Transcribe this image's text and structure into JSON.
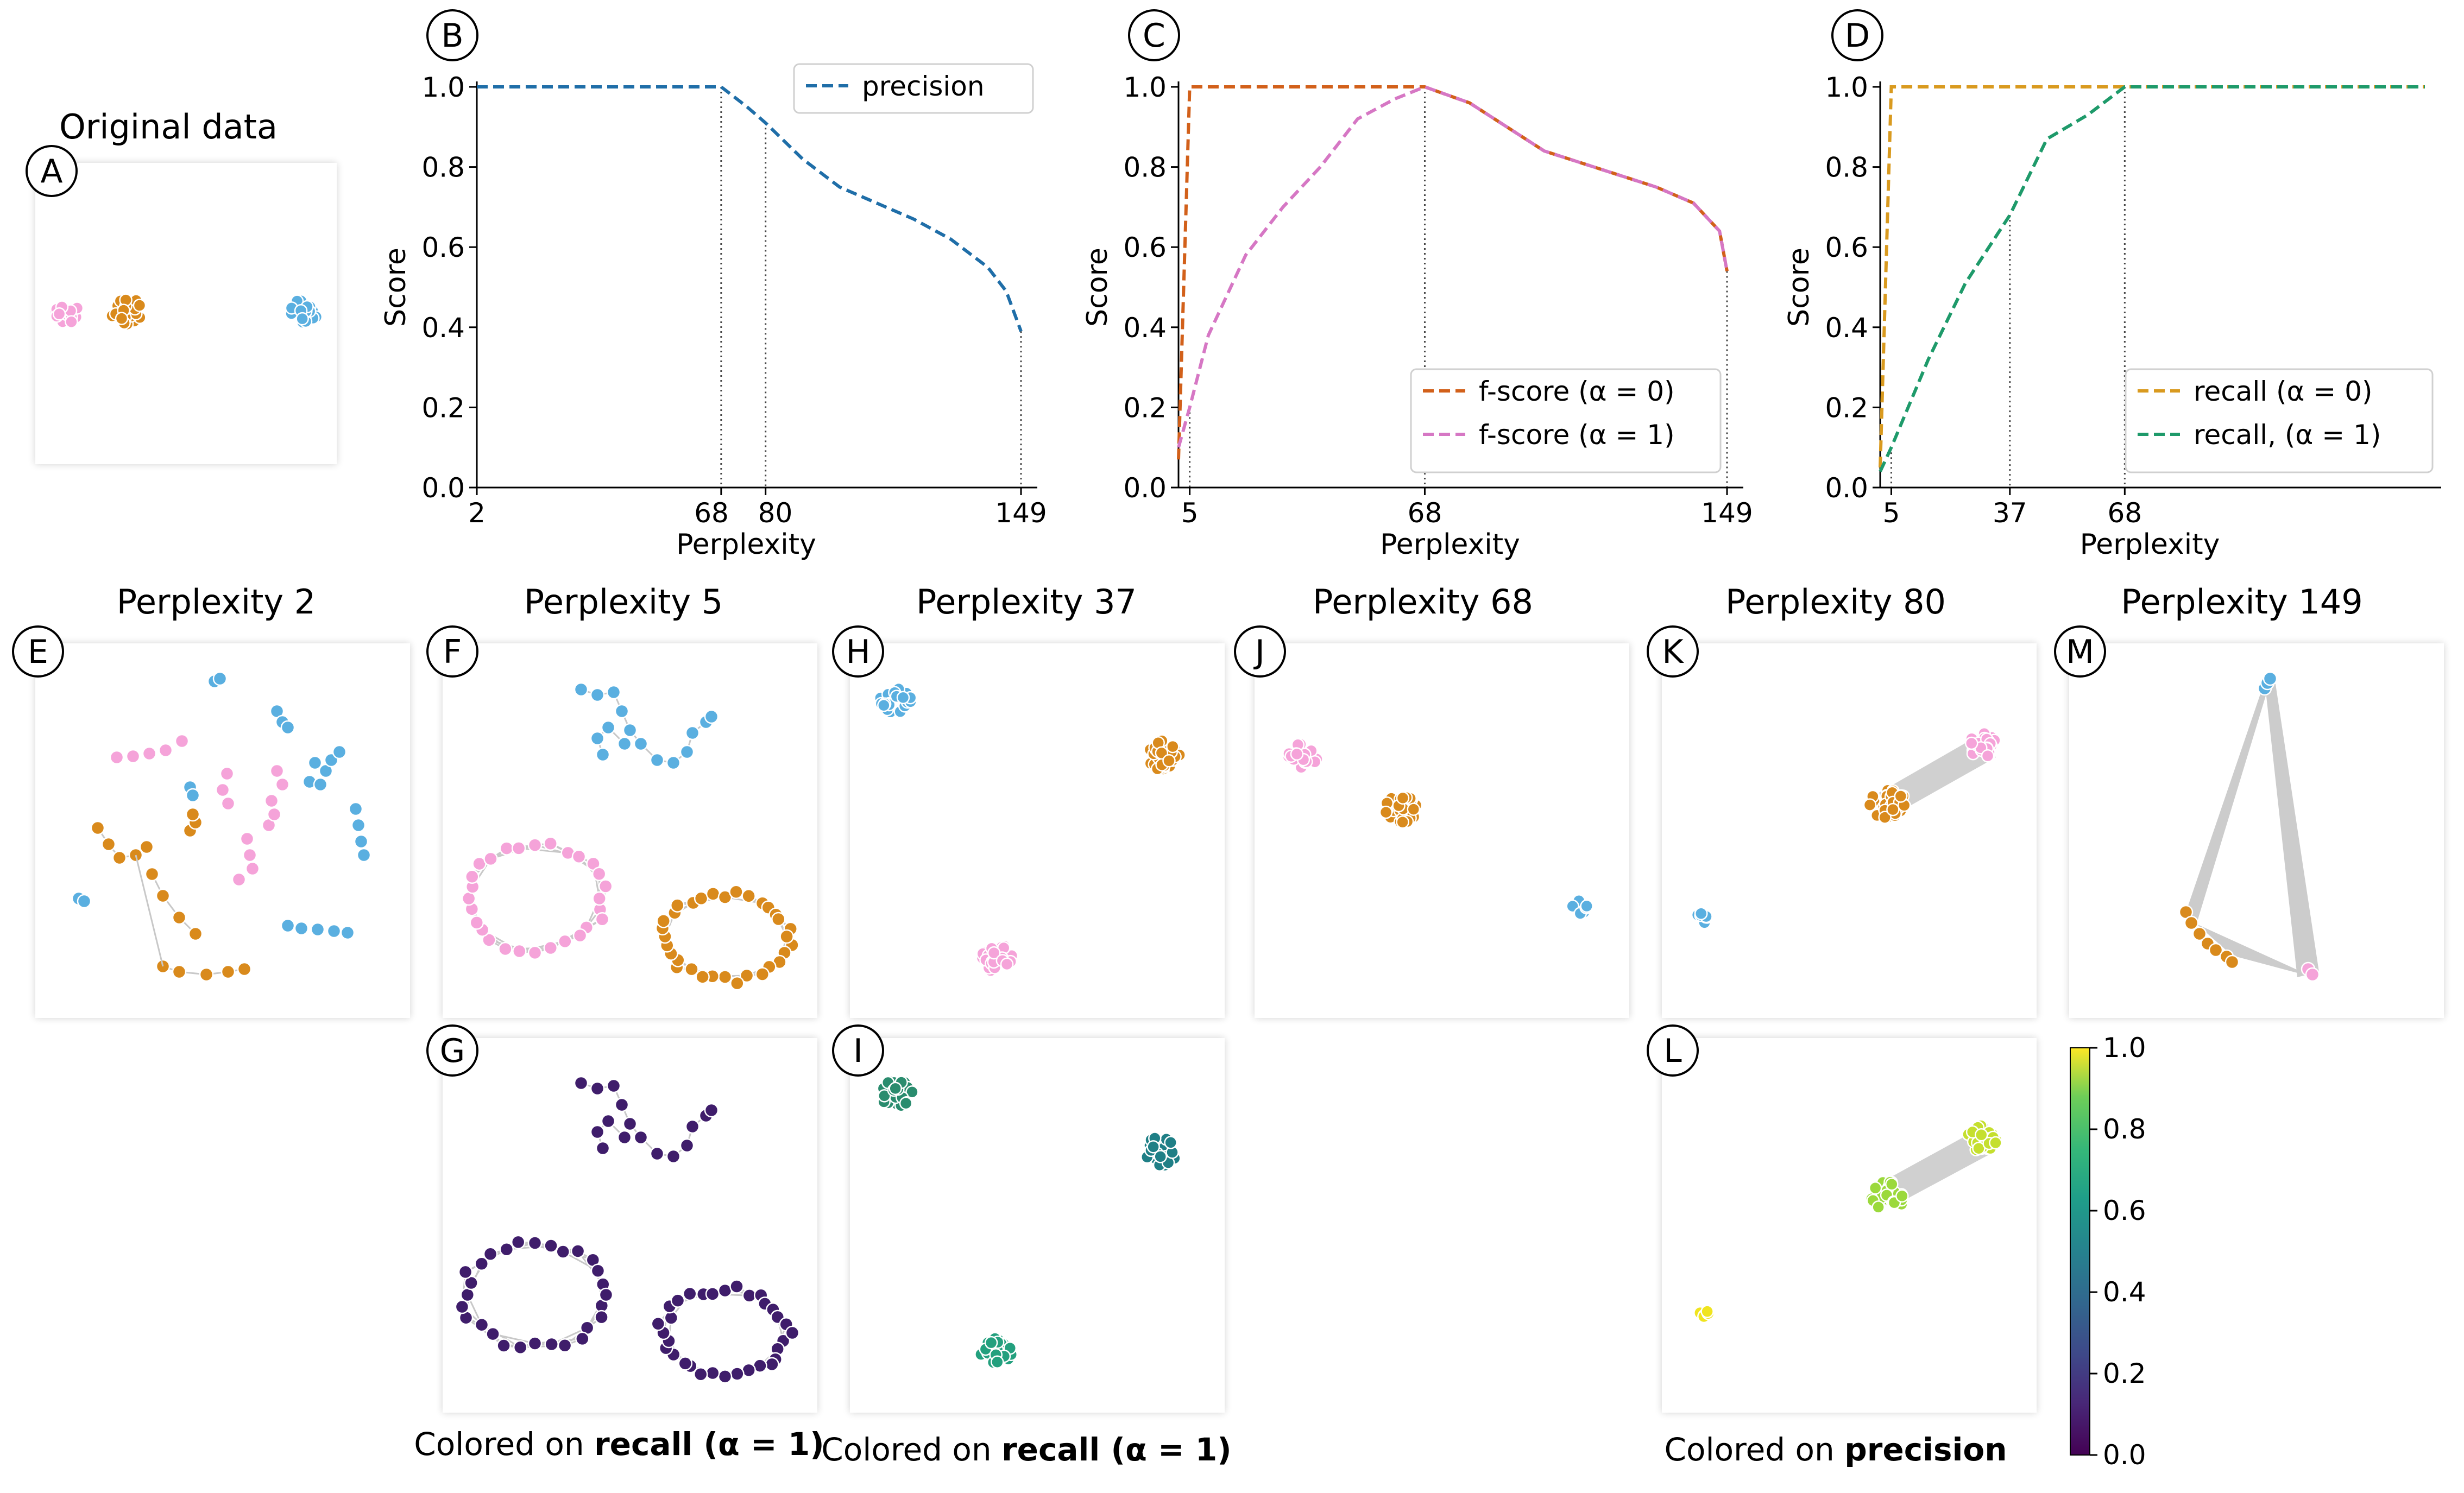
{
  "figure": {
    "panel_letters": [
      "A",
      "B",
      "C",
      "D",
      "E",
      "F",
      "G",
      "H",
      "I",
      "J",
      "K",
      "L",
      "M"
    ],
    "original_title": "Original data",
    "embedding_titles": [
      "Perplexity 2",
      "Perplexity 5",
      "Perplexity 37",
      "Perplexity 68",
      "Perplexity 80",
      "Perplexity 149"
    ],
    "captions": [
      {
        "prefix": "Colored on ",
        "bold": "recall (α = 1)"
      },
      {
        "prefix": "Colored on ",
        "bold": "recall (α = 1)"
      },
      {
        "prefix": "Colored on ",
        "bold": "precision"
      }
    ],
    "cluster_colors": {
      "pink": "#f5a3d9",
      "orange": "#d98a1c",
      "blue": "#5aafe0"
    },
    "edge_color": "#c8c8c8"
  },
  "chart_data": [
    {
      "id": "B",
      "type": "line",
      "xlabel": "Perplexity",
      "ylabel": "Score",
      "xlim": [
        2,
        149
      ],
      "ylim": [
        0,
        1.0
      ],
      "xticks": [
        2,
        68,
        80,
        149
      ],
      "yticks": [
        0.0,
        0.2,
        0.4,
        0.6,
        0.8,
        1.0
      ],
      "ytick_labels": [
        "0.0",
        "0.2",
        "0.4",
        "0.6",
        "0.8",
        "1.0"
      ],
      "vlines": [
        2,
        68,
        80,
        149
      ],
      "legend": "top-right",
      "series": [
        {
          "name": "precision",
          "color": "#1f6ea8",
          "x": [
            2,
            68,
            75,
            80,
            90,
            100,
            110,
            120,
            130,
            140,
            145,
            149
          ],
          "y": [
            1.0,
            1.0,
            0.95,
            0.91,
            0.82,
            0.75,
            0.71,
            0.67,
            0.62,
            0.55,
            0.49,
            0.39
          ]
        }
      ]
    },
    {
      "id": "C",
      "type": "line",
      "xlabel": "Perplexity",
      "ylabel": "Score",
      "xlim": [
        2,
        149
      ],
      "ylim": [
        0,
        1.0
      ],
      "xticks": [
        5,
        68,
        149
      ],
      "yticks": [
        0.0,
        0.2,
        0.4,
        0.6,
        0.8,
        1.0
      ],
      "ytick_labels": [
        "0.0",
        "0.2",
        "0.4",
        "0.6",
        "0.8",
        "1.0"
      ],
      "vlines": [
        5,
        68,
        149
      ],
      "legend": "bottom-right",
      "series": [
        {
          "name": "f-score (α = 0)",
          "color": "#d2601a",
          "x": [
            2,
            5,
            68,
            80,
            90,
            100,
            110,
            120,
            130,
            140,
            147,
            149
          ],
          "y": [
            0.07,
            1.0,
            1.0,
            0.96,
            0.9,
            0.84,
            0.81,
            0.78,
            0.75,
            0.71,
            0.64,
            0.54
          ]
        },
        {
          "name": "f-score (α = 1)",
          "color": "#d677c4",
          "x": [
            2,
            5,
            10,
            20,
            30,
            40,
            50,
            60,
            68,
            80,
            90,
            100,
            110,
            120,
            130,
            140,
            147,
            149
          ],
          "y": [
            0.1,
            0.2,
            0.38,
            0.58,
            0.7,
            0.8,
            0.92,
            0.97,
            1.0,
            0.96,
            0.9,
            0.84,
            0.81,
            0.78,
            0.75,
            0.71,
            0.64,
            0.54
          ]
        }
      ]
    },
    {
      "id": "D",
      "type": "line",
      "xlabel": "Perplexity",
      "ylabel": "Score",
      "xlim": [
        2,
        149
      ],
      "ylim": [
        0,
        1.0
      ],
      "xticks": [
        5,
        37,
        68
      ],
      "yticks": [
        0.0,
        0.2,
        0.4,
        0.6,
        0.8,
        1.0
      ],
      "ytick_labels": [
        "0.0",
        "0.2",
        "0.4",
        "0.6",
        "0.8",
        "1.0"
      ],
      "vlines": [
        5,
        37,
        68
      ],
      "legend": "bottom-right",
      "series": [
        {
          "name": "recall (α = 0)",
          "color": "#d99a1f",
          "x": [
            2,
            5,
            149
          ],
          "y": [
            0.05,
            1.0,
            1.0
          ]
        },
        {
          "name": "recall, (α = 1)",
          "color": "#1e9a6a",
          "x": [
            2,
            5,
            15,
            25,
            37,
            47,
            58,
            68,
            149
          ],
          "y": [
            0.04,
            0.1,
            0.32,
            0.51,
            0.68,
            0.87,
            0.93,
            1.0,
            1.0
          ]
        }
      ]
    },
    {
      "id": "colorbar",
      "type": "heatmap",
      "colormap": "viridis",
      "range": [
        0.0,
        1.0
      ],
      "ticks": [
        0.0,
        0.2,
        0.4,
        0.6,
        0.8,
        1.0
      ],
      "tick_labels": [
        "0.0",
        "0.2",
        "0.4",
        "0.6",
        "0.8",
        "1.0"
      ]
    }
  ]
}
